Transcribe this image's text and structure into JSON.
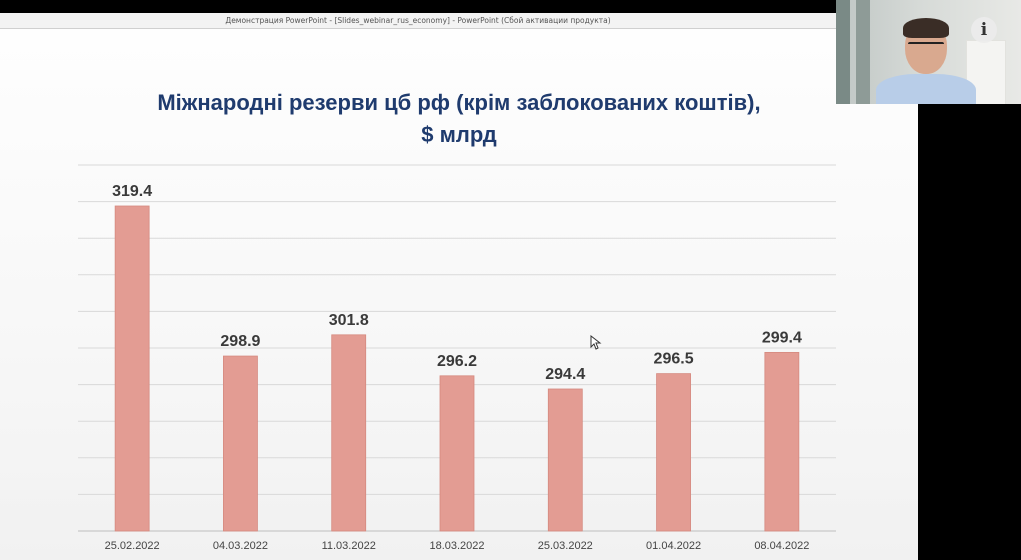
{
  "window": {
    "title": "Демонстрация PowerPoint - [Slides_webinar_rus_economy] - PowerPoint (Сбой активации продукта)"
  },
  "slide": {
    "title_line1": "Міжнародні резерви цб рф (крім заблокованих коштів),",
    "title_line2": "$ млрд"
  },
  "overlay": {
    "info_label": "i"
  },
  "colors": {
    "bar": "#e39c93",
    "bar_stroke": "#d5897f",
    "grid": "#d9d9d9",
    "title": "#1f3b6e",
    "label": "#3a3a3a"
  },
  "chart_data": {
    "type": "bar",
    "title": "Міжнародні резерви цб рф (крім заблокованих коштів), $ млрд",
    "categories": [
      "25.02.2022",
      "04.03.2022",
      "11.03.2022",
      "18.03.2022",
      "25.03.2022",
      "01.04.2022",
      "08.04.2022"
    ],
    "values": [
      319.4,
      298.9,
      301.8,
      296.2,
      294.4,
      296.5,
      299.4
    ],
    "value_labels": [
      "319.4",
      "298.9",
      "301.8",
      "296.2",
      "294.4",
      "296.5",
      "299.4"
    ],
    "ylim": [
      275,
      325
    ],
    "grid": true,
    "legend": "none"
  }
}
